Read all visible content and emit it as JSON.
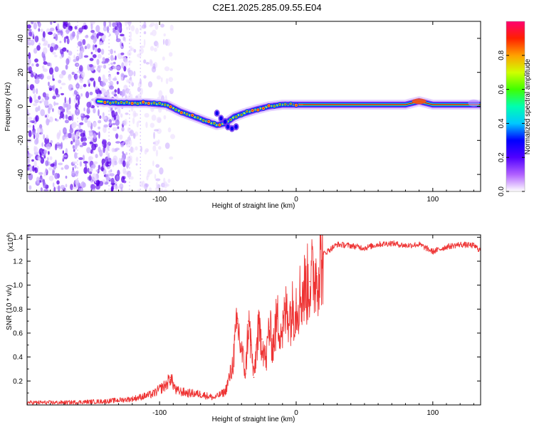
{
  "title": "C2E1.2025.285.09.55.E04",
  "chart_data": [
    {
      "type": "heatmap",
      "xlabel": "Height of straight line (km)",
      "ylabel": "Frequency (Hz)",
      "xlim": [
        -197,
        135
      ],
      "ylim": [
        -50,
        50
      ],
      "xticks": [
        -100,
        0,
        100
      ],
      "xtick_labels": [
        "-100",
        "0",
        "100"
      ],
      "yticks": [
        -40,
        -20,
        0,
        20,
        40
      ],
      "ytick_labels": [
        "-40",
        "-20",
        "0",
        "20",
        "40"
      ],
      "colorbar": {
        "label": "Normalized spectral amplitude",
        "range": [
          0,
          1
        ],
        "ticks": [
          0.0,
          0.2,
          0.4,
          0.6,
          0.8
        ],
        "tick_labels": [
          "0.0",
          "0.2",
          "0.4",
          "0.6",
          "0.8"
        ]
      },
      "ridge_frequency": {
        "x": [
          -145,
          -130,
          -110,
          -95,
          -85,
          -75,
          -65,
          -58,
          -52,
          -45,
          -38,
          -30,
          -20,
          -10,
          0,
          20,
          40,
          60,
          80,
          90,
          100,
          115,
          135
        ],
        "y": [
          3,
          2,
          2,
          1,
          -3,
          -6,
          -9,
          -11,
          -10,
          -6,
          -4,
          -2,
          0,
          1,
          1,
          1,
          1,
          1,
          1,
          3,
          1,
          1,
          1
        ]
      }
    },
    {
      "type": "line",
      "xlabel": "Height of straight line (km)",
      "ylabel": "SNR (10 * v/v)",
      "y_scale_label": "(x10",
      "y_scale_exponent": "4",
      "xlim": [
        -197,
        135
      ],
      "ylim": [
        0,
        14200
      ],
      "xticks": [
        -100,
        0,
        100
      ],
      "xtick_labels": [
        "-100",
        "0",
        "100"
      ],
      "yticks": [
        2000,
        4000,
        6000,
        8000,
        10000,
        12000,
        14000
      ],
      "ytick_labels": [
        "0.2",
        "0.4",
        "0.6",
        "0.8",
        "1.0",
        "1.2",
        "1.4"
      ],
      "series": [
        {
          "name": "SNR",
          "color": "#ee3333",
          "x": [
            -197,
            -170,
            -140,
            -120,
            -105,
            -95,
            -92,
            -88,
            -80,
            -70,
            -60,
            -52,
            -47,
            -43,
            -40,
            -37,
            -35,
            -33,
            -31,
            -28,
            -25,
            -22,
            -20,
            -17,
            -14,
            -10,
            -7,
            -4,
            0,
            5,
            10,
            15,
            20,
            25,
            30,
            40,
            50,
            60,
            70,
            80,
            90,
            95,
            100,
            110,
            120,
            130,
            135
          ],
          "values": [
            200,
            200,
            300,
            500,
            900,
            1700,
            2300,
            1200,
            1000,
            900,
            600,
            1100,
            3000,
            6800,
            4500,
            2600,
            7000,
            5000,
            2300,
            6000,
            5500,
            3500,
            6500,
            5000,
            7200,
            6200,
            8000,
            7600,
            8500,
            9500,
            10300,
            11000,
            12600,
            13000,
            13400,
            13300,
            13100,
            13400,
            13500,
            13300,
            13400,
            13100,
            12800,
            13200,
            13400,
            13300,
            12900
          ]
        }
      ]
    }
  ]
}
